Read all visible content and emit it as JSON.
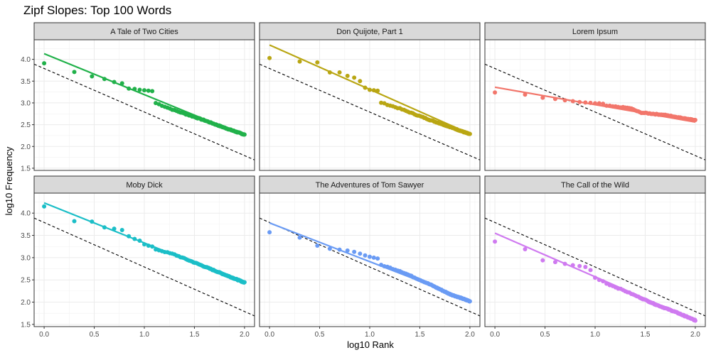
{
  "chart_data": {
    "type": "scatter",
    "title": "Zipf Slopes: Top 100 Words",
    "xlabel": "log10 Rank",
    "ylabel": "log10 Frequency",
    "xlim": [
      -0.1,
      2.1
    ],
    "ylim": [
      1.45,
      4.45
    ],
    "xticks": [
      0.0,
      0.5,
      1.0,
      1.5,
      2.0
    ],
    "xtick_labels": [
      "0.0",
      "0.5",
      "1.0",
      "1.5",
      "2.0"
    ],
    "yticks": [
      1.5,
      2.0,
      2.5,
      3.0,
      3.5,
      4.0
    ],
    "ytick_labels": [
      "1.5",
      "2.0",
      "2.5",
      "3.0",
      "3.5",
      "4.0"
    ],
    "reference_line": {
      "style": "dashed",
      "color": "#000000",
      "intercept": 3.79,
      "slope": -1.0
    },
    "panels": [
      {
        "name": "A Tale of Two Cities",
        "color": "#21B14A",
        "points": [
          [
            0.0,
            3.91
          ],
          [
            0.301,
            3.71
          ],
          [
            0.477,
            3.61
          ],
          [
            0.602,
            3.55
          ],
          [
            0.699,
            3.48
          ],
          [
            0.778,
            3.45
          ],
          [
            0.845,
            3.33
          ],
          [
            0.903,
            3.32
          ],
          [
            0.954,
            3.3
          ],
          [
            1.0,
            3.29
          ],
          [
            1.041,
            3.28
          ],
          [
            1.079,
            3.27
          ]
        ],
        "tail": [
          [
            1.0,
            3.1
          ],
          [
            1.3,
            2.83
          ],
          [
            1.6,
            2.6
          ],
          [
            1.8,
            2.43
          ],
          [
            2.0,
            2.27
          ]
        ],
        "fit": {
          "intercept": 4.13,
          "slope": -0.94
        }
      },
      {
        "name": "Don Quijote, Part 1",
        "color": "#B9A613",
        "points": [
          [
            0.0,
            4.03
          ],
          [
            0.301,
            3.95
          ],
          [
            0.477,
            3.93
          ],
          [
            0.602,
            3.7
          ],
          [
            0.699,
            3.7
          ],
          [
            0.778,
            3.62
          ],
          [
            0.845,
            3.58
          ],
          [
            0.903,
            3.5
          ],
          [
            0.954,
            3.35
          ],
          [
            1.0,
            3.3
          ],
          [
            1.041,
            3.29
          ],
          [
            1.079,
            3.28
          ]
        ],
        "tail": [
          [
            1.0,
            3.09
          ],
          [
            1.3,
            2.87
          ],
          [
            1.6,
            2.61
          ],
          [
            1.8,
            2.45
          ],
          [
            2.0,
            2.28
          ]
        ],
        "fit": {
          "intercept": 4.33,
          "slope": -1.02
        }
      },
      {
        "name": "Lorem Ipsum",
        "color": "#F2766B",
        "points": [
          [
            0.0,
            3.24
          ],
          [
            0.301,
            3.19
          ],
          [
            0.477,
            3.12
          ],
          [
            0.602,
            3.09
          ],
          [
            0.699,
            3.06
          ],
          [
            0.778,
            3.04
          ],
          [
            0.845,
            3.02
          ],
          [
            0.903,
            3.01
          ],
          [
            0.954,
            3.0
          ],
          [
            1.0,
            2.99
          ],
          [
            1.041,
            2.99
          ],
          [
            1.079,
            2.98
          ]
        ],
        "tail": [
          [
            1.0,
            2.96
          ],
          [
            1.35,
            2.88
          ],
          [
            1.45,
            2.78
          ],
          [
            1.7,
            2.72
          ],
          [
            2.0,
            2.6
          ]
        ],
        "fit": {
          "intercept": 3.36,
          "slope": -0.4
        }
      },
      {
        "name": "Moby Dick",
        "color": "#1BBEC7",
        "points": [
          [
            0.0,
            4.15
          ],
          [
            0.301,
            3.82
          ],
          [
            0.477,
            3.81
          ],
          [
            0.602,
            3.68
          ],
          [
            0.699,
            3.65
          ],
          [
            0.778,
            3.62
          ],
          [
            0.845,
            3.48
          ],
          [
            0.903,
            3.42
          ],
          [
            0.954,
            3.38
          ],
          [
            1.0,
            3.3
          ],
          [
            1.041,
            3.27
          ],
          [
            1.079,
            3.25
          ]
        ],
        "tail": [
          [
            1.0,
            3.26
          ],
          [
            1.3,
            3.07
          ],
          [
            1.6,
            2.8
          ],
          [
            1.8,
            2.62
          ],
          [
            2.0,
            2.44
          ]
        ],
        "fit": {
          "intercept": 4.23,
          "slope": -0.9
        }
      },
      {
        "name": "The Adventures of Tom Sawyer",
        "color": "#6A9BF4",
        "points": [
          [
            0.0,
            3.57
          ],
          [
            0.301,
            3.45
          ],
          [
            0.477,
            3.27
          ],
          [
            0.602,
            3.2
          ],
          [
            0.699,
            3.18
          ],
          [
            0.778,
            3.16
          ],
          [
            0.845,
            3.13
          ],
          [
            0.903,
            3.09
          ],
          [
            0.954,
            3.05
          ],
          [
            1.0,
            3.02
          ],
          [
            1.041,
            3.0
          ],
          [
            1.079,
            2.98
          ]
        ],
        "tail": [
          [
            1.0,
            2.92
          ],
          [
            1.3,
            2.7
          ],
          [
            1.6,
            2.4
          ],
          [
            1.8,
            2.18
          ],
          [
            2.0,
            2.02
          ]
        ],
        "fit": {
          "intercept": 3.78,
          "slope": -0.87
        }
      },
      {
        "name": "The Call of the Wild",
        "color": "#CF7AF0",
        "points": [
          [
            0.0,
            3.36
          ],
          [
            0.301,
            3.19
          ],
          [
            0.477,
            2.94
          ],
          [
            0.602,
            2.9
          ],
          [
            0.699,
            2.86
          ],
          [
            0.778,
            2.83
          ],
          [
            0.845,
            2.81
          ],
          [
            0.903,
            2.79
          ],
          [
            0.954,
            2.72
          ],
          [
            1.0,
            2.55
          ],
          [
            1.041,
            2.5
          ],
          [
            1.079,
            2.47
          ]
        ],
        "tail": [
          [
            1.0,
            2.52
          ],
          [
            1.3,
            2.25
          ],
          [
            1.6,
            1.95
          ],
          [
            1.8,
            1.78
          ],
          [
            2.0,
            1.59
          ]
        ],
        "fit": {
          "intercept": 3.55,
          "slope": -0.98
        }
      }
    ]
  }
}
